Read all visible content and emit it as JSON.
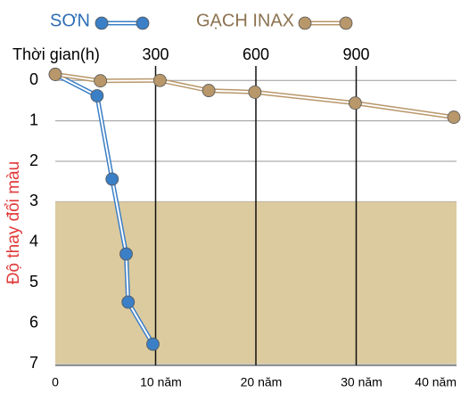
{
  "chart_data": {
    "type": "line",
    "x_label": "Thời gian(h)",
    "y_label": "Độ thay đổi màu",
    "xlim": [
      0,
      1200
    ],
    "xticks": [
      300,
      600,
      900
    ],
    "xticks_bottom": [
      0,
      {
        "value": 300,
        "label": "10 năm"
      },
      {
        "value": 600,
        "label": "20 năm"
      },
      {
        "value": 900,
        "label": "30 năm"
      },
      {
        "value": 1200,
        "label": "40 năm"
      }
    ],
    "ylim": [
      -0.6,
      7
    ],
    "yticks": [
      0,
      1,
      2,
      3,
      4,
      5,
      6,
      7
    ],
    "y_inverted": true,
    "grid": true,
    "shaded_range": [
      3,
      7
    ],
    "shade_color": "#dccb9f",
    "series": [
      {
        "name": "SƠN",
        "color": "#3b7fc6",
        "x": [
          0,
          125,
          170,
          212,
          218,
          292
        ],
        "values": [
          -0.15,
          0.38,
          2.44,
          4.29,
          5.48,
          6.52
        ]
      },
      {
        "name": "GẠCH INAX",
        "color": "#b8976a",
        "x": [
          0,
          135,
          313,
          459,
          597,
          897,
          1192
        ],
        "values": [
          -0.15,
          0.01,
          0,
          0.25,
          0.29,
          0.56,
          0.91
        ]
      }
    ]
  }
}
